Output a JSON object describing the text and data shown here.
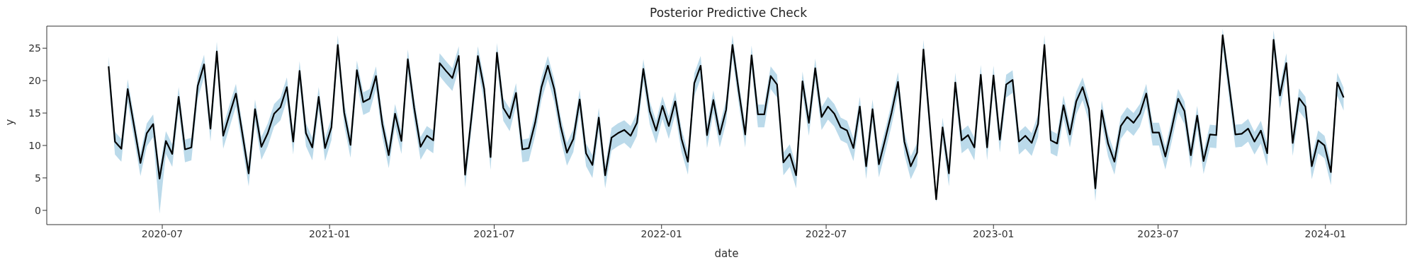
{
  "chart_data": {
    "type": "line",
    "title": "Posterior Predictive Check",
    "xlabel": "date",
    "ylabel": "y",
    "xlim": [
      "2020-02-25",
      "2024-03-30"
    ],
    "xticks": [
      "2020-07",
      "2021-01",
      "2021-07",
      "2022-01",
      "2022-07",
      "2023-01",
      "2023-07",
      "2024-01"
    ],
    "ylim": [
      -2.2,
      28.4
    ],
    "yticks": [
      0,
      5,
      10,
      15,
      20,
      25
    ],
    "x": [
      "2020-05-03",
      "2020-05-10",
      "2020-05-17",
      "2020-05-24",
      "2020-05-31",
      "2020-06-07",
      "2020-06-14",
      "2020-06-21",
      "2020-06-28",
      "2020-07-05",
      "2020-07-12",
      "2020-07-19",
      "2020-07-26",
      "2020-08-02",
      "2020-08-09",
      "2020-08-16",
      "2020-08-23",
      "2020-08-30",
      "2020-09-06",
      "2020-09-13",
      "2020-09-20",
      "2020-09-27",
      "2020-10-04",
      "2020-10-11",
      "2020-10-18",
      "2020-10-25",
      "2020-11-01",
      "2020-11-08",
      "2020-11-15",
      "2020-11-22",
      "2020-11-29",
      "2020-12-06",
      "2020-12-13",
      "2020-12-20",
      "2020-12-27",
      "2021-01-03",
      "2021-01-10",
      "2021-01-17",
      "2021-01-24",
      "2021-01-31",
      "2021-02-07",
      "2021-02-14",
      "2021-02-21",
      "2021-02-28",
      "2021-03-07",
      "2021-03-14",
      "2021-03-21",
      "2021-03-28",
      "2021-04-04",
      "2021-04-11",
      "2021-04-18",
      "2021-04-25",
      "2021-05-02",
      "2021-05-09",
      "2021-05-16",
      "2021-05-23",
      "2021-05-30",
      "2021-06-06",
      "2021-06-13",
      "2021-06-20",
      "2021-06-27",
      "2021-07-04",
      "2021-07-11",
      "2021-07-18",
      "2021-07-25",
      "2021-08-01",
      "2021-08-08",
      "2021-08-15",
      "2021-08-22",
      "2021-08-29",
      "2021-09-05",
      "2021-09-12",
      "2021-09-19",
      "2021-09-26",
      "2021-10-03",
      "2021-10-10",
      "2021-10-17",
      "2021-10-24",
      "2021-10-31",
      "2021-11-07",
      "2021-11-14",
      "2021-11-21",
      "2021-11-28",
      "2021-12-05",
      "2021-12-12",
      "2021-12-19",
      "2021-12-26",
      "2022-01-02",
      "2022-01-09",
      "2022-01-16",
      "2022-01-23",
      "2022-01-30",
      "2022-02-06",
      "2022-02-13",
      "2022-02-20",
      "2022-02-27",
      "2022-03-06",
      "2022-03-13",
      "2022-03-20",
      "2022-03-27",
      "2022-04-03",
      "2022-04-10",
      "2022-04-17",
      "2022-04-24",
      "2022-05-01",
      "2022-05-08",
      "2022-05-15",
      "2022-05-22",
      "2022-05-29",
      "2022-06-05",
      "2022-06-12",
      "2022-06-19",
      "2022-06-26",
      "2022-07-03",
      "2022-07-10",
      "2022-07-17",
      "2022-07-24",
      "2022-07-31",
      "2022-08-07",
      "2022-08-14",
      "2022-08-21",
      "2022-08-28",
      "2022-09-04",
      "2022-09-11",
      "2022-09-18",
      "2022-09-25",
      "2022-10-02",
      "2022-10-09",
      "2022-10-16",
      "2022-10-23",
      "2022-10-30",
      "2022-11-06",
      "2022-11-13",
      "2022-11-20",
      "2022-11-27",
      "2022-12-04",
      "2022-12-11",
      "2022-12-18",
      "2022-12-25",
      "2023-01-01",
      "2023-01-08",
      "2023-01-15",
      "2023-01-22",
      "2023-01-29",
      "2023-02-05",
      "2023-02-12",
      "2023-02-19",
      "2023-02-26",
      "2023-03-05",
      "2023-03-12",
      "2023-03-19",
      "2023-03-26",
      "2023-04-02",
      "2023-04-09",
      "2023-04-16",
      "2023-04-23",
      "2023-04-30",
      "2023-05-07",
      "2023-05-14",
      "2023-05-21",
      "2023-05-28",
      "2023-06-04",
      "2023-06-11",
      "2023-06-18",
      "2023-06-25",
      "2023-07-02",
      "2023-07-09",
      "2023-07-16",
      "2023-07-23",
      "2023-07-30",
      "2023-08-06",
      "2023-08-13",
      "2023-08-20",
      "2023-08-27",
      "2023-09-03",
      "2023-09-10",
      "2023-09-17",
      "2023-09-24",
      "2023-10-01",
      "2023-10-08",
      "2023-10-15",
      "2023-10-22",
      "2023-10-29",
      "2023-11-05",
      "2023-11-12",
      "2023-11-19",
      "2023-11-26",
      "2023-12-03",
      "2023-12-10",
      "2023-12-17",
      "2023-12-24",
      "2023-12-31",
      "2024-01-07",
      "2024-01-14",
      "2024-01-21"
    ],
    "series": [
      {
        "color": "#000000",
        "values": [
          22.2,
          10.6,
          9.5,
          18.7,
          13.0,
          7.3,
          11.9,
          13.3,
          4.9,
          10.7,
          8.7,
          17.5,
          9.4,
          9.7,
          19.2,
          22.5,
          12.6,
          24.5,
          11.5,
          14.8,
          18.0,
          11.9,
          5.7,
          15.6,
          9.8,
          11.9,
          14.9,
          15.9,
          19.0,
          10.6,
          21.5,
          11.9,
          9.7,
          17.5,
          9.6,
          12.8,
          25.5,
          15.1,
          10.1,
          21.6,
          16.7,
          17.2,
          20.7,
          13.3,
          8.5,
          14.9,
          10.7,
          23.3,
          15.8,
          9.8,
          11.5,
          10.8,
          22.7,
          21.5,
          20.4,
          23.8,
          5.5,
          14.4,
          23.8,
          18.7,
          8.2,
          24.3,
          15.8,
          14.2,
          18.1,
          9.4,
          9.6,
          13.5,
          19.0,
          22.3,
          18.7,
          13.0,
          8.9,
          11.0,
          17.1,
          8.8,
          7.0,
          14.3,
          5.4,
          11.2,
          11.9,
          12.4,
          11.5,
          13.5,
          21.8,
          15.3,
          12.3,
          16.1,
          13.0,
          16.8,
          11.0,
          7.5,
          19.6,
          22.3,
          11.6,
          17.0,
          11.7,
          15.5,
          25.5,
          18.3,
          11.7,
          23.9,
          14.8,
          14.8,
          20.7,
          19.4,
          7.4,
          8.7,
          5.4,
          19.9,
          13.5,
          21.9,
          14.4,
          16.0,
          14.9,
          12.8,
          12.3,
          9.6,
          16.0,
          6.8,
          15.6,
          7.1,
          11.0,
          15.1,
          19.8,
          10.6,
          6.8,
          8.9,
          24.8,
          13.3,
          1.7,
          12.8,
          5.7,
          19.7,
          10.8,
          11.6,
          9.7,
          20.9,
          9.7,
          20.8,
          10.9,
          19.4,
          20.1,
          10.6,
          11.5,
          10.4,
          13.3,
          25.5,
          10.8,
          10.3,
          16.2,
          11.7,
          16.8,
          19.0,
          15.6,
          3.4,
          15.4,
          10.3,
          7.5,
          13.0,
          14.4,
          13.5,
          14.9,
          18.0,
          12.0,
          12.0,
          8.3,
          12.6,
          17.2,
          15.3,
          8.5,
          14.6,
          7.6,
          11.7,
          11.6,
          27.0,
          19.4,
          11.7,
          11.8,
          12.6,
          10.6,
          12.3,
          8.8,
          26.3,
          17.7,
          22.7,
          10.4,
          17.3,
          16.0,
          6.8,
          10.8,
          10.0,
          5.9,
          19.7,
          17.4
        ],
        "lower": [
          20.2,
          8.6,
          7.5,
          16.7,
          11.0,
          5.3,
          9.9,
          11.3,
          -0.5,
          8.7,
          6.7,
          15.5,
          7.4,
          7.7,
          17.2,
          20.5,
          10.6,
          22.5,
          9.5,
          12.8,
          16.0,
          9.9,
          3.7,
          13.6,
          7.8,
          9.9,
          12.9,
          13.9,
          17.0,
          8.6,
          19.5,
          9.9,
          7.7,
          15.5,
          7.6,
          10.8,
          23.5,
          13.1,
          8.1,
          19.6,
          14.7,
          15.2,
          18.7,
          11.3,
          6.5,
          12.9,
          8.7,
          21.3,
          13.8,
          7.8,
          9.5,
          8.8,
          20.7,
          19.5,
          18.4,
          21.8,
          3.5,
          12.4,
          21.8,
          16.7,
          6.2,
          22.3,
          13.8,
          12.2,
          16.1,
          7.4,
          7.6,
          11.5,
          17.0,
          20.3,
          16.7,
          11.0,
          6.9,
          9.0,
          15.1,
          6.8,
          5.0,
          12.3,
          3.4,
          9.2,
          9.9,
          10.4,
          9.5,
          11.5,
          19.8,
          13.3,
          10.3,
          14.1,
          11.0,
          14.8,
          9.0,
          5.5,
          17.6,
          20.3,
          9.6,
          15.0,
          9.7,
          13.5,
          23.5,
          16.3,
          9.7,
          21.9,
          12.8,
          12.8,
          18.7,
          17.4,
          5.4,
          6.7,
          3.4,
          17.9,
          11.5,
          19.9,
          12.4,
          14.0,
          12.9,
          10.8,
          10.3,
          7.6,
          14.0,
          4.8,
          13.6,
          5.1,
          9.0,
          13.1,
          17.8,
          8.6,
          4.8,
          6.9,
          22.8,
          11.3,
          1.2,
          10.8,
          3.7,
          17.7,
          8.8,
          9.6,
          7.7,
          18.9,
          7.7,
          18.8,
          8.9,
          17.4,
          18.1,
          8.6,
          9.5,
          8.4,
          11.3,
          23.5,
          8.8,
          8.3,
          14.2,
          9.7,
          14.8,
          17.0,
          13.6,
          1.4,
          13.4,
          8.3,
          5.5,
          11.0,
          12.4,
          11.5,
          12.9,
          16.0,
          10.0,
          10.0,
          6.3,
          10.6,
          15.2,
          13.3,
          6.5,
          12.6,
          5.6,
          9.7,
          9.6,
          25.0,
          17.4,
          9.7,
          9.8,
          10.6,
          8.6,
          10.3,
          6.8,
          24.3,
          15.7,
          20.7,
          8.4,
          15.3,
          14.0,
          4.8,
          8.8,
          8.0,
          3.9,
          17.7,
          15.4
        ],
        "upper": [
          23.7,
          12.1,
          11.0,
          20.2,
          14.5,
          8.8,
          13.4,
          14.8,
          6.4,
          12.2,
          10.2,
          19.0,
          10.9,
          11.2,
          20.7,
          24.0,
          14.1,
          26.0,
          13.0,
          16.3,
          19.5,
          13.4,
          7.2,
          17.1,
          11.3,
          13.4,
          16.4,
          17.4,
          20.5,
          12.1,
          23.0,
          13.4,
          11.2,
          19.0,
          11.1,
          14.3,
          27.0,
          16.6,
          11.6,
          23.1,
          18.2,
          18.7,
          22.2,
          14.8,
          10.0,
          16.4,
          12.2,
          24.8,
          17.3,
          11.3,
          13.0,
          12.3,
          24.2,
          23.0,
          21.9,
          25.3,
          7.0,
          15.9,
          25.3,
          20.2,
          9.7,
          25.8,
          17.3,
          15.7,
          19.6,
          10.9,
          11.1,
          15.0,
          20.5,
          23.8,
          20.2,
          14.5,
          10.4,
          12.5,
          18.6,
          10.3,
          8.5,
          15.8,
          6.9,
          12.7,
          13.4,
          13.9,
          13.0,
          15.0,
          23.3,
          16.8,
          13.8,
          17.6,
          14.5,
          18.3,
          12.5,
          9.0,
          21.1,
          23.8,
          13.1,
          18.5,
          13.2,
          17.0,
          27.0,
          19.8,
          13.2,
          25.4,
          16.3,
          16.3,
          22.2,
          20.9,
          8.9,
          10.2,
          6.9,
          21.4,
          15.0,
          23.4,
          15.9,
          17.5,
          16.4,
          14.3,
          13.8,
          11.1,
          17.5,
          8.3,
          17.1,
          8.6,
          12.5,
          16.6,
          21.3,
          12.1,
          8.3,
          10.4,
          26.3,
          14.8,
          2.5,
          14.3,
          7.2,
          21.2,
          12.3,
          13.1,
          11.2,
          22.4,
          11.2,
          22.3,
          12.4,
          20.9,
          21.6,
          12.1,
          13.0,
          11.9,
          14.8,
          27.0,
          12.3,
          11.8,
          17.7,
          13.2,
          18.3,
          20.5,
          17.1,
          4.9,
          16.9,
          11.8,
          9.0,
          14.5,
          15.9,
          15.0,
          16.4,
          19.5,
          13.5,
          13.5,
          9.8,
          14.1,
          18.7,
          16.8,
          10.0,
          16.1,
          9.1,
          13.2,
          13.1,
          28.0,
          20.9,
          13.2,
          13.3,
          14.1,
          12.1,
          13.8,
          10.3,
          27.8,
          19.2,
          24.2,
          11.9,
          18.8,
          17.5,
          8.3,
          12.3,
          11.5,
          7.4,
          21.2,
          18.9
        ]
      }
    ]
  }
}
